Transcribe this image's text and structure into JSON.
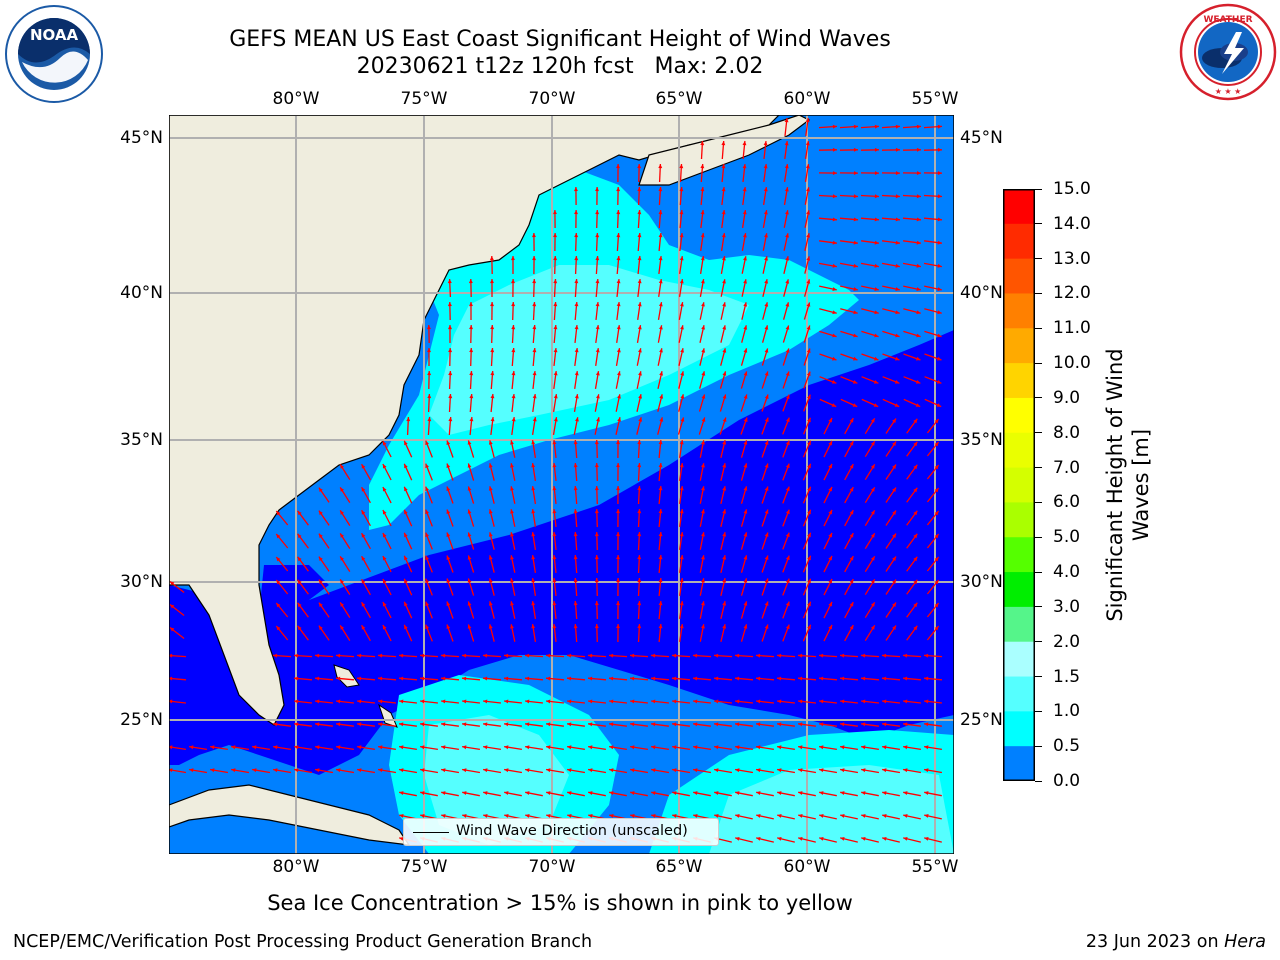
{
  "header": {
    "title_line1": "GEFS MEAN US East Coast Significant Height of Wind Waves",
    "title_line2": "20230621 t12z 120h fcst   Max: 2.02"
  },
  "logos": {
    "left": {
      "text": "NOAA",
      "ring_text": "NATIONAL OCEANIC AND ATMOSPHERIC ADMINISTRATION · U.S. DEPARTMENT OF COMMERCE",
      "color_outer": "#1b5aa6",
      "color_inner": "#0a2f6b"
    },
    "right": {
      "ring_text": "NATIONAL WEATHER SERVICE",
      "color_ring": "#d6202c",
      "color_inner": "#1267c4"
    }
  },
  "map": {
    "lon_ticks_top": [
      "80°W",
      "75°W",
      "70°W",
      "65°W",
      "60°W",
      "55°W"
    ],
    "lon_ticks_bottom": [
      "80°W",
      "75°W",
      "70°W",
      "65°W",
      "60°W",
      "55°W"
    ],
    "lat_ticks_left": [
      "45°N",
      "40°N",
      "35°N",
      "30°N",
      "25°N"
    ],
    "lat_ticks_right": [
      "45°N",
      "40°N",
      "35°N",
      "30°N",
      "25°N"
    ],
    "land_color": "#efedde",
    "arrow_color": "#ff0000",
    "legend_label": "Wind Wave Direction (unscaled)"
  },
  "colorbar": {
    "label": "Significant Height of Wind Waves [m]",
    "ticks": [
      "15.0",
      "14.0",
      "13.0",
      "12.0",
      "11.0",
      "10.0",
      "9.0",
      "8.0",
      "7.0",
      "6.0",
      "5.0",
      "4.0",
      "3.0",
      "2.0",
      "1.5",
      "1.0",
      "0.5",
      "0.0"
    ],
    "colors": [
      "#ff0000",
      "#ff2b00",
      "#ff5500",
      "#ff8000",
      "#ffaa00",
      "#ffd400",
      "#ffff00",
      "#eaff00",
      "#d4ff00",
      "#aaff00",
      "#55ff00",
      "#00ee00",
      "#55f58a",
      "#aaffff",
      "#55ffff",
      "#00ffff",
      "#0080ff",
      "#0000ff"
    ]
  },
  "note": "Sea Ice Concentration > 15% is shown in pink to yellow",
  "footer": {
    "left": "NCEP/EMC/Verification Post Processing Product Generation Branch",
    "right_date": "23 Jun 2023 on",
    "right_host": "Hera"
  }
}
